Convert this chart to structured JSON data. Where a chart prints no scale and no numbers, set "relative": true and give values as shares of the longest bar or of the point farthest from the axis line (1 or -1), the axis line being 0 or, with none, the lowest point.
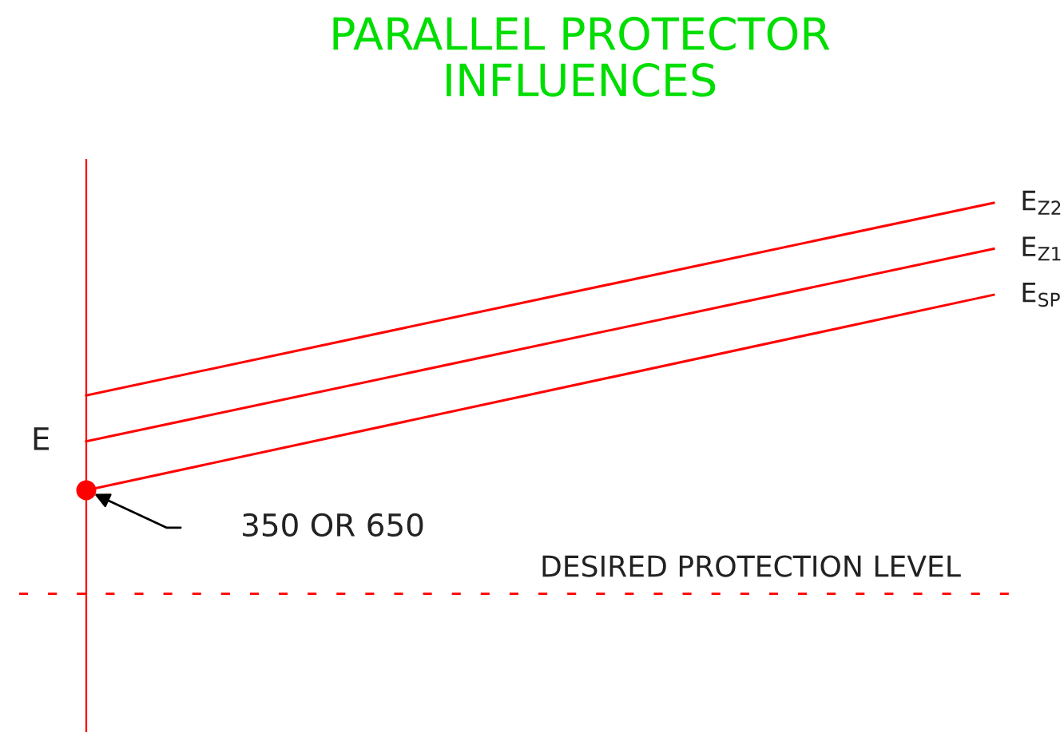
{
  "chart_data": {
    "type": "line",
    "title": "PARALLEL PROTECTOR\nINFLUENCES",
    "ylabel": "E",
    "relative": true,
    "categories": [
      null,
      null
    ],
    "series": [
      {
        "name": "E$_{Z2}$",
        "color": "#ff0000",
        "values": [
          0.33,
          1
        ]
      },
      {
        "name": "E$_{Z1}$",
        "color": "#ff0000",
        "values": [
          0.17,
          0.84
        ]
      },
      {
        "name": "E$_{SP}$",
        "color": "#ff0000",
        "values": [
          0,
          0.68
        ],
        "marker": "circle"
      }
    ],
    "annotations": [
      "350 OR 650"
    ],
    "ref_lines": [
      {
        "axis": "y",
        "value": -0.36,
        "label": "DESIRED PROTECTION LEVEL",
        "color": "#ff0000",
        "line_style": "dashed"
      }
    ],
    "marker": "none",
    "line_style": "solid"
  }
}
